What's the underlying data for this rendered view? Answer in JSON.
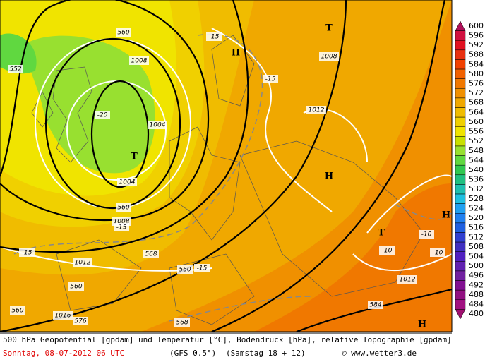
{
  "map": {
    "labels": [
      "560",
      "1008",
      "-20",
      "1004",
      "T",
      "1004",
      "560",
      "1008",
      "-15",
      "-15",
      "H",
      "T",
      "1008",
      "-15",
      "1012",
      "H",
      "-15",
      "568",
      "1012",
      "560",
      "-15",
      "560",
      "1016",
      "576",
      "568",
      "560",
      "T",
      "-10",
      "-10",
      "-10",
      "1012",
      "584",
      "H",
      "H",
      "552"
    ]
  },
  "colorbar": {
    "levels": [
      600,
      596,
      592,
      588,
      584,
      580,
      576,
      572,
      568,
      564,
      560,
      556,
      552,
      548,
      544,
      540,
      536,
      532,
      528,
      524,
      520,
      516,
      512,
      508,
      504,
      500,
      496,
      492,
      488,
      484,
      480
    ],
    "colors": [
      "#b0105a",
      "#d01040",
      "#e01020",
      "#e83010",
      "#f04000",
      "#f06000",
      "#f07800",
      "#f09000",
      "#f0a800",
      "#f0bc00",
      "#f0d000",
      "#f0e400",
      "#c8e000",
      "#98e030",
      "#60d840",
      "#30c850",
      "#20c080",
      "#20c0b0",
      "#20c0e0",
      "#20a0f0",
      "#2080f0",
      "#2060e0",
      "#3040d0",
      "#4030c0",
      "#5020c0",
      "#6020b0",
      "#7020a0",
      "#801090",
      "#901080",
      "#a01080",
      "#a01070"
    ]
  },
  "footer": {
    "line1": "500 hPa Geopotential [gpdam] und Temperatur [°C], Bodendruck [hPa], relative Topographie [gpdam]",
    "date": "Sonntag, 08-07-2012  06 UTC",
    "model": "(GFS 0.5°)",
    "run": "(Samstag 18 + 12)",
    "credit": "© www.wetter3.de"
  }
}
